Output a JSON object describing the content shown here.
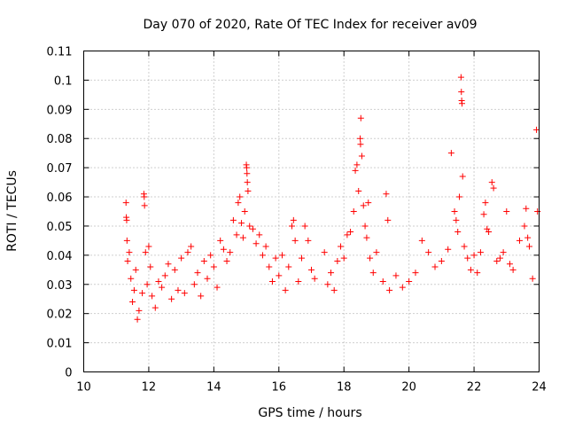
{
  "chart_data": {
    "type": "scatter",
    "title": "Day 070 of 2020, Rate Of TEC Index for receiver av09",
    "xlabel": "GPS time / hours",
    "ylabel": "ROTI / TECUs",
    "xlim": [
      10,
      24
    ],
    "ylim": [
      0,
      0.11
    ],
    "xticks": [
      "10",
      "12",
      "14",
      "16",
      "18",
      "20",
      "22",
      "24"
    ],
    "yticks": [
      "0",
      "0.01",
      "0.02",
      "0.03",
      "0.04",
      "0.05",
      "0.06",
      "0.07",
      "0.08",
      "0.09",
      "0.1",
      "0.11"
    ],
    "grid": true,
    "marker": "+",
    "marker_color": "#ff0000",
    "series": [
      {
        "points": [
          [
            11.3,
            0.058
          ],
          [
            11.31,
            0.053
          ],
          [
            11.32,
            0.052
          ],
          [
            11.33,
            0.045
          ],
          [
            11.35,
            0.038
          ],
          [
            11.4,
            0.041
          ],
          [
            11.45,
            0.032
          ],
          [
            11.5,
            0.024
          ],
          [
            11.55,
            0.028
          ],
          [
            11.6,
            0.035
          ],
          [
            11.65,
            0.018
          ],
          [
            11.7,
            0.021
          ],
          [
            11.8,
            0.027
          ],
          [
            11.85,
            0.061
          ],
          [
            11.86,
            0.06
          ],
          [
            11.87,
            0.057
          ],
          [
            11.9,
            0.041
          ],
          [
            11.95,
            0.03
          ],
          [
            12.0,
            0.043
          ],
          [
            12.05,
            0.036
          ],
          [
            12.1,
            0.026
          ],
          [
            12.2,
            0.022
          ],
          [
            12.3,
            0.031
          ],
          [
            12.4,
            0.029
          ],
          [
            12.5,
            0.033
          ],
          [
            12.6,
            0.037
          ],
          [
            12.7,
            0.025
          ],
          [
            12.8,
            0.035
          ],
          [
            12.9,
            0.028
          ],
          [
            13.0,
            0.039
          ],
          [
            13.1,
            0.027
          ],
          [
            13.2,
            0.041
          ],
          [
            13.3,
            0.043
          ],
          [
            13.4,
            0.03
          ],
          [
            13.5,
            0.034
          ],
          [
            13.6,
            0.026
          ],
          [
            13.7,
            0.038
          ],
          [
            13.8,
            0.032
          ],
          [
            13.9,
            0.04
          ],
          [
            14.0,
            0.036
          ],
          [
            14.1,
            0.029
          ],
          [
            14.2,
            0.045
          ],
          [
            14.3,
            0.042
          ],
          [
            14.4,
            0.038
          ],
          [
            14.5,
            0.041
          ],
          [
            14.6,
            0.052
          ],
          [
            14.7,
            0.047
          ],
          [
            14.75,
            0.058
          ],
          [
            14.8,
            0.06
          ],
          [
            14.85,
            0.051
          ],
          [
            14.9,
            0.046
          ],
          [
            14.95,
            0.055
          ],
          [
            15.0,
            0.071
          ],
          [
            15.01,
            0.07
          ],
          [
            15.02,
            0.068
          ],
          [
            15.03,
            0.065
          ],
          [
            15.05,
            0.062
          ],
          [
            15.1,
            0.05
          ],
          [
            15.2,
            0.049
          ],
          [
            15.3,
            0.044
          ],
          [
            15.4,
            0.047
          ],
          [
            15.5,
            0.04
          ],
          [
            15.6,
            0.043
          ],
          [
            15.7,
            0.036
          ],
          [
            15.8,
            0.031
          ],
          [
            15.9,
            0.039
          ],
          [
            16.0,
            0.033
          ],
          [
            16.1,
            0.04
          ],
          [
            16.2,
            0.028
          ],
          [
            16.3,
            0.036
          ],
          [
            16.4,
            0.05
          ],
          [
            16.45,
            0.052
          ],
          [
            16.5,
            0.045
          ],
          [
            16.6,
            0.031
          ],
          [
            16.7,
            0.039
          ],
          [
            16.8,
            0.05
          ],
          [
            16.9,
            0.045
          ],
          [
            17.0,
            0.035
          ],
          [
            17.1,
            0.032
          ],
          [
            17.4,
            0.041
          ],
          [
            17.5,
            0.03
          ],
          [
            17.6,
            0.034
          ],
          [
            17.7,
            0.028
          ],
          [
            17.8,
            0.038
          ],
          [
            17.9,
            0.043
          ],
          [
            18.0,
            0.039
          ],
          [
            18.1,
            0.047
          ],
          [
            18.2,
            0.048
          ],
          [
            18.3,
            0.055
          ],
          [
            18.35,
            0.069
          ],
          [
            18.4,
            0.071
          ],
          [
            18.45,
            0.062
          ],
          [
            18.5,
            0.08
          ],
          [
            18.51,
            0.078
          ],
          [
            18.52,
            0.087
          ],
          [
            18.55,
            0.074
          ],
          [
            18.6,
            0.057
          ],
          [
            18.65,
            0.05
          ],
          [
            18.7,
            0.046
          ],
          [
            18.75,
            0.058
          ],
          [
            18.8,
            0.039
          ],
          [
            18.9,
            0.034
          ],
          [
            19.0,
            0.041
          ],
          [
            19.2,
            0.031
          ],
          [
            19.3,
            0.061
          ],
          [
            19.35,
            0.052
          ],
          [
            19.4,
            0.028
          ],
          [
            19.6,
            0.033
          ],
          [
            19.8,
            0.029
          ],
          [
            20.0,
            0.031
          ],
          [
            20.2,
            0.034
          ],
          [
            20.4,
            0.045
          ],
          [
            20.6,
            0.041
          ],
          [
            20.8,
            0.036
          ],
          [
            21.0,
            0.038
          ],
          [
            21.2,
            0.042
          ],
          [
            21.3,
            0.075
          ],
          [
            21.4,
            0.055
          ],
          [
            21.45,
            0.052
          ],
          [
            21.5,
            0.048
          ],
          [
            21.55,
            0.06
          ],
          [
            21.6,
            0.101
          ],
          [
            21.61,
            0.096
          ],
          [
            21.62,
            0.093
          ],
          [
            21.63,
            0.092
          ],
          [
            21.65,
            0.067
          ],
          [
            21.7,
            0.043
          ],
          [
            21.8,
            0.039
          ],
          [
            21.9,
            0.035
          ],
          [
            22.0,
            0.04
          ],
          [
            22.1,
            0.034
          ],
          [
            22.2,
            0.041
          ],
          [
            22.3,
            0.054
          ],
          [
            22.35,
            0.058
          ],
          [
            22.4,
            0.049
          ],
          [
            22.45,
            0.048
          ],
          [
            22.55,
            0.065
          ],
          [
            22.6,
            0.063
          ],
          [
            22.7,
            0.038
          ],
          [
            22.8,
            0.039
          ],
          [
            22.9,
            0.041
          ],
          [
            23.0,
            0.055
          ],
          [
            23.1,
            0.037
          ],
          [
            23.2,
            0.035
          ],
          [
            23.4,
            0.045
          ],
          [
            23.55,
            0.05
          ],
          [
            23.6,
            0.056
          ],
          [
            23.65,
            0.046
          ],
          [
            23.7,
            0.043
          ],
          [
            23.8,
            0.032
          ],
          [
            23.92,
            0.083
          ],
          [
            23.95,
            0.055
          ]
        ]
      }
    ]
  }
}
